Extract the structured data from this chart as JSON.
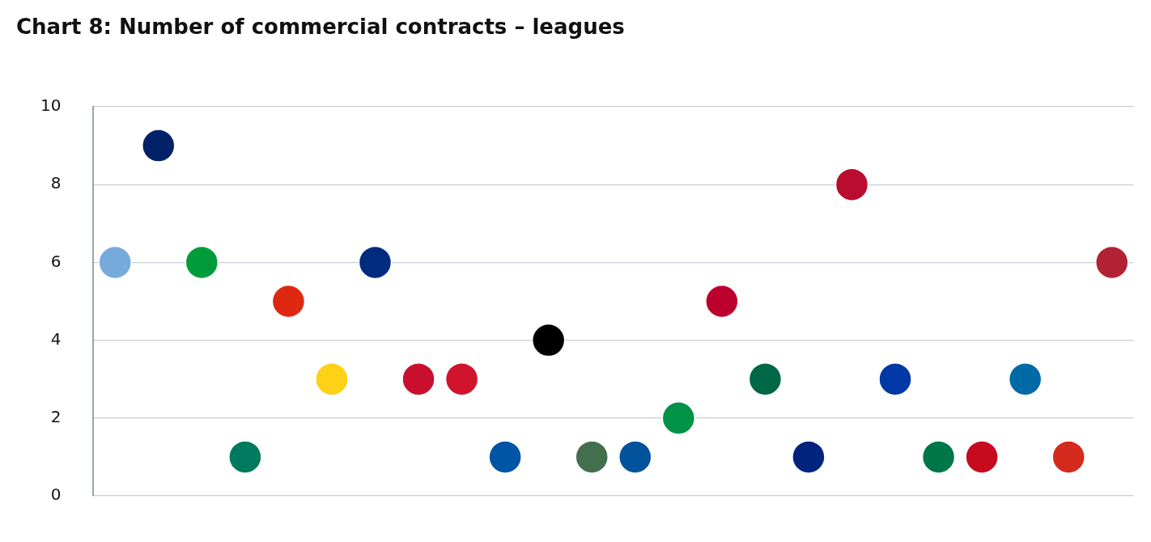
{
  "chart_data": {
    "type": "scatter",
    "title": "Chart 8: Number of commercial contracts – leagues",
    "categories": [
      null,
      null,
      null,
      null,
      null,
      null,
      null,
      null,
      null,
      null,
      null,
      null,
      null,
      null,
      null,
      null,
      null,
      null,
      null,
      null,
      null,
      null,
      null,
      null
    ],
    "values": [
      6,
      9,
      6,
      1,
      5,
      3,
      6,
      3,
      3,
      1,
      4,
      1,
      1,
      2,
      5,
      3,
      1,
      8,
      3,
      1,
      1,
      3,
      1,
      6
    ],
    "colors": [
      "#75aadb",
      "#012169",
      "#009c3b",
      "#007a5e",
      "#de2910",
      "#fcd116",
      "#002b7f",
      "#c8102e",
      "#cf142b",
      "#0055a4",
      "#000000",
      "#436f4d",
      "#02529c",
      "#009246",
      "#bc002d",
      "#006847",
      "#00247d",
      "#ba0c2f",
      "#0039a6",
      "#007749",
      "#c60b1e",
      "#006aa7",
      "#d52b1e",
      "#b22234"
    ],
    "ylim": [
      0,
      10
    ],
    "yticks": [
      0,
      2,
      4,
      6,
      8,
      10
    ],
    "grid": "y",
    "tick_labels": "y",
    "marker": "circle",
    "legend": false
  }
}
